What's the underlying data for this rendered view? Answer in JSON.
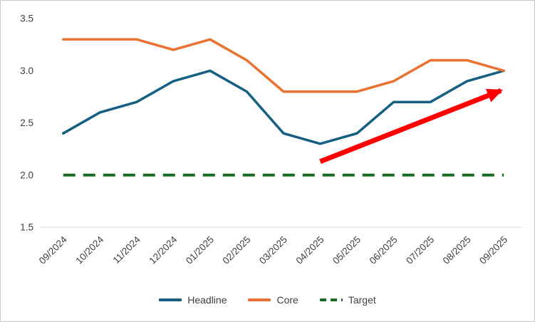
{
  "chart_data": {
    "type": "line",
    "title": "",
    "xlabel": "",
    "ylabel": "",
    "grid": false,
    "legend_position": "bottom",
    "ylim": [
      1.5,
      3.5
    ],
    "yticks": [
      1.5,
      2.0,
      2.5,
      3.0,
      3.5
    ],
    "categories": [
      "09/2024",
      "10/2024",
      "11/2024",
      "12/2024",
      "01/2025",
      "02/2025",
      "03/2025",
      "04/2025",
      "05/2025",
      "06/2025",
      "07/2025",
      "08/2025",
      "09/2025"
    ],
    "series": [
      {
        "name": "Headline",
        "color": "#156082",
        "dash": "solid",
        "values": [
          2.4,
          2.6,
          2.7,
          2.9,
          3.0,
          2.8,
          2.4,
          2.3,
          2.4,
          2.7,
          2.7,
          2.9,
          3.0
        ]
      },
      {
        "name": "Core",
        "color": "#E97132",
        "dash": "solid",
        "values": [
          3.3,
          3.3,
          3.3,
          3.2,
          3.3,
          3.1,
          2.8,
          2.8,
          2.8,
          2.9,
          3.1,
          3.1,
          3.0
        ]
      },
      {
        "name": "Target",
        "color": "#196B24",
        "dash": "dashed",
        "values": [
          2.0,
          2.0,
          2.0,
          2.0,
          2.0,
          2.0,
          2.0,
          2.0,
          2.0,
          2.0,
          2.0,
          2.0,
          2.0
        ]
      }
    ],
    "annotation": {
      "type": "arrow",
      "color": "#FF0000",
      "from": {
        "category_index": 7,
        "value": 2.13
      },
      "to": {
        "category_index": 12,
        "value": 2.82
      }
    },
    "axis_color": "#D9D9D9"
  }
}
